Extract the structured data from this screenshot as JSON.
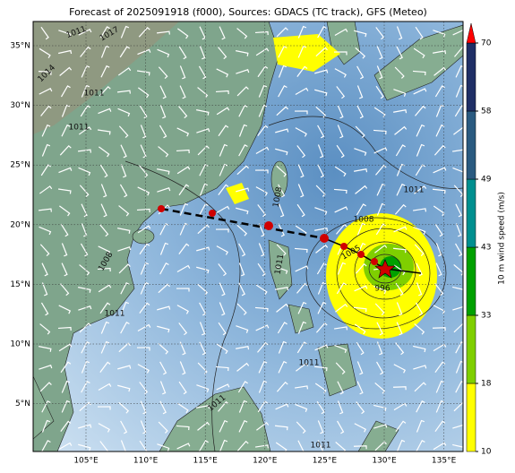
{
  "title": "Forecast of 2025091918 (f000), Sources: GDACS (TC track), GFS (Meteo)",
  "map": {
    "lat_labels": [
      "35°N",
      "30°N",
      "25°N",
      "20°N",
      "15°N",
      "10°N",
      "5°N"
    ],
    "lon_labels": [
      "105°E",
      "110°E",
      "115°E",
      "120°E",
      "125°E",
      "130°E",
      "135°E"
    ],
    "isobar_labels": [
      "1011",
      "1017",
      "1014",
      "1011",
      "1011",
      "1008",
      "1011",
      "1008",
      "1005",
      "1011",
      "996",
      "1008",
      "1011",
      "1011",
      "1011",
      "1011"
    ]
  },
  "colorbar": {
    "label": "10 m wind speed (m/s)",
    "ticks": [
      10,
      18,
      33,
      43,
      49,
      58,
      70
    ],
    "colors": [
      "#ffff00",
      "#7fcf00",
      "#00a000",
      "#008f8f",
      "#2a5a80",
      "#1f2f66"
    ],
    "extend_color": "#ff0000"
  }
}
